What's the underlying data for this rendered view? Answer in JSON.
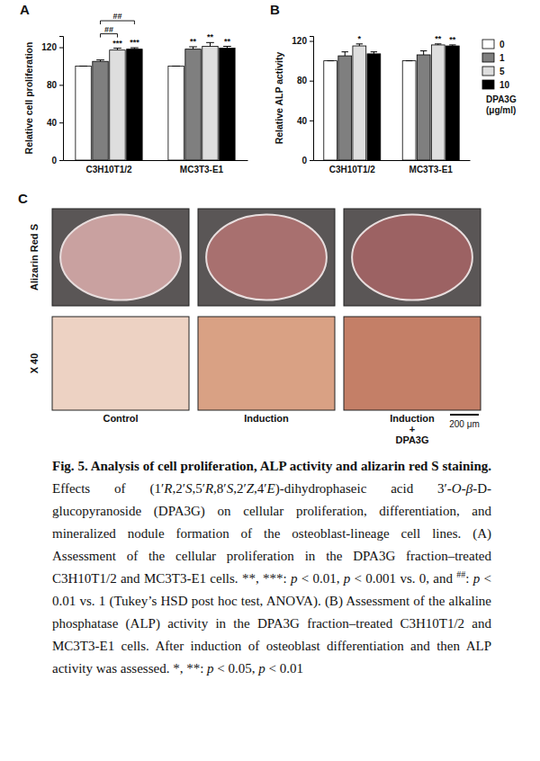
{
  "chart_data": [
    {
      "panel": "A",
      "type": "bar",
      "y_label": "Relative cell proliferation",
      "categories": [
        "C3H10T1/2",
        "MC3T3-E1"
      ],
      "series": [
        {
          "color": "#ffffff",
          "values": [
            100,
            100
          ],
          "errors": [
            0,
            0
          ],
          "significance": [
            null,
            null
          ]
        },
        {
          "color": "#7f7f7f",
          "values": [
            105,
            118
          ],
          "errors": [
            1.5,
            2.5
          ],
          "significance": [
            null,
            "**"
          ]
        },
        {
          "color": "#dedede",
          "values": [
            117,
            121
          ],
          "errors": [
            2,
            4
          ],
          "significance": [
            "***",
            "**"
          ]
        },
        {
          "color": "#000000",
          "values": [
            118,
            119
          ],
          "errors": [
            1.5,
            2
          ],
          "significance": [
            "***",
            "**"
          ]
        }
      ],
      "brackets": [
        {
          "category": 0,
          "from": 1,
          "to": 2,
          "label": "##"
        },
        {
          "category": 0,
          "from": 1,
          "to": 3,
          "label": "##"
        }
      ],
      "ylim": [
        0,
        132
      ],
      "yticks": [
        0,
        40,
        80,
        120
      ]
    },
    {
      "panel": "B",
      "type": "bar",
      "y_label": "Relative ALP activity",
      "categories": [
        "C3H10T1/2",
        "MC3T3-E1"
      ],
      "series": [
        {
          "name": "0",
          "color": "#ffffff",
          "values": [
            100,
            100
          ],
          "errors": [
            0,
            0
          ],
          "significance": [
            null,
            null
          ]
        },
        {
          "name": "1",
          "color": "#7f7f7f",
          "values": [
            105,
            106
          ],
          "errors": [
            4,
            4
          ],
          "significance": [
            null,
            null
          ]
        },
        {
          "name": "5",
          "color": "#dedede",
          "values": [
            115,
            116
          ],
          "errors": [
            2,
            1
          ],
          "significance": [
            "*",
            "**"
          ]
        },
        {
          "name": "10",
          "color": "#000000",
          "values": [
            107,
            115
          ],
          "errors": [
            2,
            1
          ],
          "significance": [
            null,
            "**"
          ]
        }
      ],
      "legend": "right",
      "legend_title": "DPA3G (μg/ml)",
      "ylim": [
        0,
        125
      ],
      "yticks": [
        0,
        40,
        80,
        120
      ]
    }
  ],
  "panel_c": {
    "panel": "C",
    "row_labels": [
      "Alizarin Red S",
      "X 40"
    ],
    "column_labels": [
      "Control",
      "Induction",
      "Induction + DPA3G"
    ],
    "scale_bar": "200 μm"
  },
  "caption": {
    "segments": [
      {
        "text": "Fig. 5. Analysis of cell proliferation, ALP activity and alizarin red S staining.",
        "style": "bold"
      },
      {
        "text": " Effects of (1′"
      },
      {
        "text": "R",
        "style": "italic"
      },
      {
        "text": ",2′"
      },
      {
        "text": "S",
        "style": "italic"
      },
      {
        "text": ",5′"
      },
      {
        "text": "R",
        "style": "italic"
      },
      {
        "text": ",8′"
      },
      {
        "text": "S",
        "style": "italic"
      },
      {
        "text": ",2′"
      },
      {
        "text": "Z",
        "style": "italic"
      },
      {
        "text": ",4′"
      },
      {
        "text": "E",
        "style": "italic"
      },
      {
        "text": ")-dihydrophaseic acid 3′-"
      },
      {
        "text": "O",
        "style": "italic"
      },
      {
        "text": "-"
      },
      {
        "text": "β",
        "style": "italic"
      },
      {
        "text": "-D-glucopyranoside (DPA3G) on cellular proliferation, differentiation, and mineralized nodule formation of the osteoblast-lineage cell lines. (A) Assessment of the cellular proliferation in the DPA3G fraction–treated C3H10T1/2 and MC3T3-E1 cells. **, ***: "
      },
      {
        "text": "p",
        "style": "italic"
      },
      {
        "text": " < 0.01, "
      },
      {
        "text": "p",
        "style": "italic"
      },
      {
        "text": " < 0.001 vs. 0, and "
      },
      {
        "text": "##",
        "style": "sup"
      },
      {
        "text": ": "
      },
      {
        "text": "p",
        "style": "italic"
      },
      {
        "text": " < 0.01 vs. 1 (Tukey’s HSD post hoc test, ANOVA). (B) Assessment of the alkaline phosphatase (ALP) activity in the DPA3G fraction–treated C3H10T1/2 and MC3T3-E1 cells. After induction of osteoblast differentiation and then ALP activity was assessed. *, **: "
      },
      {
        "text": "p",
        "style": "italic"
      },
      {
        "text": " < 0.05, "
      },
      {
        "text": "p",
        "style": "italic"
      },
      {
        "text": " < 0.01"
      }
    ]
  }
}
